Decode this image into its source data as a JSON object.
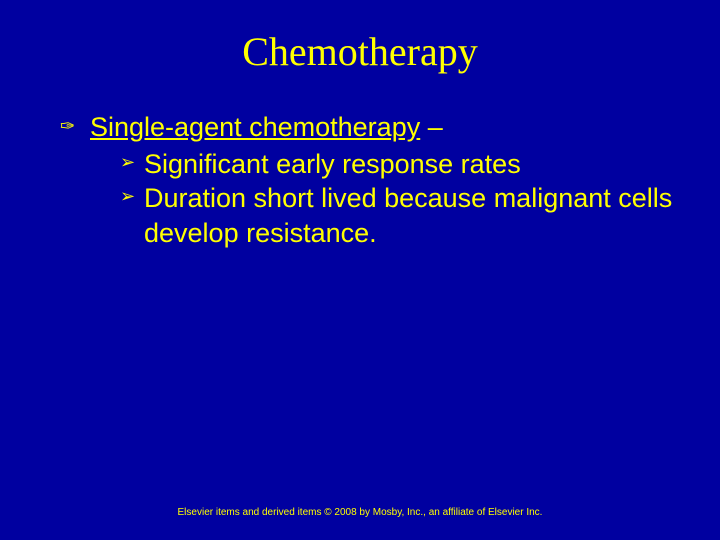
{
  "slide": {
    "background_color": "#0000a0",
    "text_color": "#ffff00",
    "title": {
      "text": "Chemotherapy",
      "font_family": "Times New Roman",
      "font_size_pt": 40,
      "color": "#ffff00"
    },
    "body": {
      "font_family": "Arial",
      "font_size_pt": 27,
      "color": "#ffff00",
      "items": [
        {
          "bullet_glyph": "✑",
          "heading_underlined": "Single-agent chemotherapy",
          "heading_suffix": " –",
          "sub_bullet_glyph": "➢",
          "sub_items": [
            "Significant early response rates",
            "Duration short lived because malignant cells develop resistance."
          ]
        }
      ]
    },
    "footer": {
      "text": "Elsevier items and derived items © 2008 by Mosby, Inc., an affiliate of Elsevier Inc.",
      "font_size_pt": 10,
      "color": "#ffff00"
    }
  }
}
